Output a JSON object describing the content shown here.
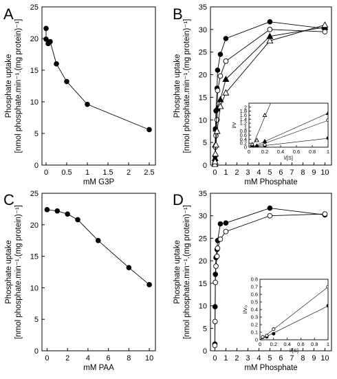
{
  "chart_data": [
    {
      "panel": "A",
      "type": "line",
      "ylabel_line1": "Phosphate uptake",
      "ylabel_line2": "[nmol phosphate.min⁻¹.(mg protein)⁻¹]",
      "xlabel": "mM G3P",
      "xlim": [
        -0.1,
        2.65
      ],
      "ylim": [
        0,
        25
      ],
      "xticks": [
        0,
        0.5,
        1,
        1.5,
        2,
        2.5
      ],
      "yticks": [
        0,
        5,
        10,
        15,
        20,
        25
      ],
      "series": [
        {
          "marker": "filled-circle",
          "x": [
            0,
            0,
            0.05,
            0.1,
            0.25,
            0.5,
            1.0,
            2.5
          ],
          "y": [
            21.6,
            19.9,
            19.2,
            19.5,
            16.0,
            13.2,
            9.6,
            5.6
          ]
        }
      ]
    },
    {
      "panel": "B",
      "type": "line",
      "ylabel_line1": "Phosphate uptake",
      "ylabel_line2": "[nmol phosphate.min⁻¹.(mg protein)⁻¹]",
      "xlabel": "mM Phosphate",
      "xlim": [
        -0.4,
        10.6
      ],
      "ylim": [
        0,
        35
      ],
      "xticks": [
        0,
        1,
        2,
        3,
        4,
        5,
        6,
        7,
        8,
        9,
        10
      ],
      "yticks": [
        0,
        5,
        10,
        15,
        20,
        25,
        30,
        35
      ],
      "series": [
        {
          "marker": "filled-circle",
          "x": [
            0,
            0.02,
            0.05,
            0.1,
            0.2,
            0.25,
            0.5,
            1,
            5,
            10
          ],
          "y": [
            0.5,
            2,
            8,
            12,
            17,
            21,
            24.5,
            28,
            31.7,
            30.2
          ]
        },
        {
          "marker": "open-circle",
          "x": [
            0,
            0.02,
            0.05,
            0.1,
            0.2,
            0.25,
            0.5,
            1,
            5,
            10
          ],
          "y": [
            0.2,
            1,
            4,
            6.5,
            10,
            16.5,
            19.7,
            23,
            30,
            29.5
          ]
        },
        {
          "marker": "filled-triangle",
          "x": [
            0,
            0.02,
            0.05,
            0.1,
            0.2,
            0.5,
            1,
            5,
            10
          ],
          "y": [
            0.3,
            1.5,
            4.5,
            8,
            12.5,
            14.5,
            19,
            28.5,
            30.5
          ]
        },
        {
          "marker": "open-triangle",
          "x": [
            0,
            0.02,
            0.05,
            0.1,
            0.2,
            0.5,
            1,
            5,
            10
          ],
          "y": [
            0.2,
            0.8,
            2.5,
            4.5,
            7.5,
            13,
            16,
            27.5,
            31
          ]
        }
      ],
      "inset": {
        "xlabel": "l/[S]",
        "ylabel": "l/V",
        "xlim": [
          0,
          1
        ],
        "ylim": [
          0,
          2.2
        ],
        "xticks": [
          0,
          0.2,
          0.4,
          0.6,
          0.8,
          1
        ],
        "yticks": [
          0,
          0.2,
          0.4,
          0.6,
          0.8,
          1,
          1.2,
          1.4,
          1.6,
          1.8,
          2
        ],
        "series": [
          {
            "marker": "filled-circle",
            "x": [
              0.04,
              0.1,
              0.2,
              1
            ],
            "y": [
              0.032,
              0.036,
              0.06,
              0.45
            ]
          },
          {
            "marker": "open-circle",
            "x": [
              0.04,
              0.1,
              0.2,
              1
            ],
            "y": [
              0.035,
              0.045,
              0.12,
              1.35
            ]
          },
          {
            "marker": "filled-triangle",
            "x": [
              0.04,
              0.1,
              0.2,
              1
            ],
            "y": [
              0.035,
              0.07,
              0.3,
              1.7
            ]
          },
          {
            "marker": "open-triangle",
            "x": [
              0.04,
              0.1,
              0.2
            ],
            "y": [
              0.15,
              0.35,
              1.6
            ]
          }
        ]
      }
    },
    {
      "panel": "C",
      "type": "line",
      "ylabel_line1": "Phosphate uptake",
      "ylabel_line2": "[nmol phosphate.min⁻¹.(mg protein)⁻¹]",
      "xlabel": "mM PAA",
      "xlim": [
        -0.5,
        10.6
      ],
      "ylim": [
        0,
        25
      ],
      "xticks": [
        0,
        2,
        4,
        6,
        8,
        10
      ],
      "yticks": [
        0,
        5,
        10,
        15,
        20,
        25
      ],
      "series": [
        {
          "marker": "filled-circle",
          "x": [
            0,
            1,
            2,
            3,
            5,
            8,
            10
          ],
          "y": [
            22.4,
            22.2,
            21.7,
            20.8,
            17.5,
            13.2,
            10.5
          ]
        }
      ]
    },
    {
      "panel": "D",
      "type": "line",
      "ylabel_line1": "Phosphate uptake",
      "ylabel_line2": "[nmol phosphate.min⁻¹.(mg protein)⁻¹]",
      "xlabel": "mM Phosphate",
      "xlim": [
        -0.4,
        10.6
      ],
      "ylim": [
        0,
        35
      ],
      "xticks": [
        0,
        1,
        2,
        3,
        4,
        5,
        6,
        7,
        8,
        9,
        10
      ],
      "yticks": [
        0,
        5,
        10,
        15,
        20,
        25,
        30,
        35
      ],
      "series": [
        {
          "marker": "filled-circle",
          "x": [
            0,
            0.02,
            0.05,
            0.1,
            0.2,
            0.25,
            0.5,
            1,
            5,
            10
          ],
          "y": [
            1.5,
            9.8,
            17,
            20.7,
            22.5,
            24.5,
            28.2,
            28.4,
            31.7,
            30.2
          ]
        },
        {
          "marker": "open-circle",
          "x": [
            0,
            0.02,
            0.05,
            0.1,
            0.2,
            0.25,
            0.5,
            1,
            5,
            10
          ],
          "y": [
            1.2,
            6.5,
            15.2,
            18.8,
            21,
            22.8,
            24.8,
            26.5,
            30.0,
            30.4
          ]
        }
      ],
      "inset": {
        "xlabel": "l/[S]",
        "ylabel": "l/V₀",
        "xlim": [
          0,
          1
        ],
        "ylim": [
          0,
          0.8
        ],
        "xticks": [
          0,
          0.2,
          0.4,
          0.6,
          0.8,
          1
        ],
        "yticks": [
          0,
          0.1,
          0.2,
          0.3,
          0.4,
          0.5,
          0.6,
          0.7,
          0.8
        ],
        "series": [
          {
            "marker": "filled-circle",
            "x": [
              0.04,
              0.1,
              0.2,
              1
            ],
            "y": [
              0.033,
              0.04,
              0.08,
              0.45
            ]
          },
          {
            "marker": "open-circle",
            "x": [
              0.04,
              0.1,
              0.2,
              1
            ],
            "y": [
              0.038,
              0.055,
              0.14,
              0.7
            ]
          }
        ]
      }
    }
  ]
}
